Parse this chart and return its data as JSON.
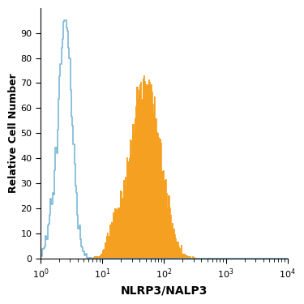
{
  "title": "",
  "xlabel": "NLRP3/NALP3",
  "ylabel": "Relative Cell Number",
  "xlim": [
    1,
    10000
  ],
  "ylim": [
    0,
    100
  ],
  "yticks": [
    0,
    10,
    20,
    30,
    40,
    50,
    60,
    70,
    80,
    90
  ],
  "background_color": "#ffffff",
  "isotype_color": "#7ab8d5",
  "antibody_color": "#f5a020",
  "antibody_fill_alpha": 1.0,
  "isotype_peak_x": 2.5,
  "isotype_peak_y": 95,
  "antibody_peak_x": 55,
  "antibody_peak_y": 73,
  "xlabel_fontsize": 10,
  "ylabel_fontsize": 9,
  "tick_labelsize": 8
}
